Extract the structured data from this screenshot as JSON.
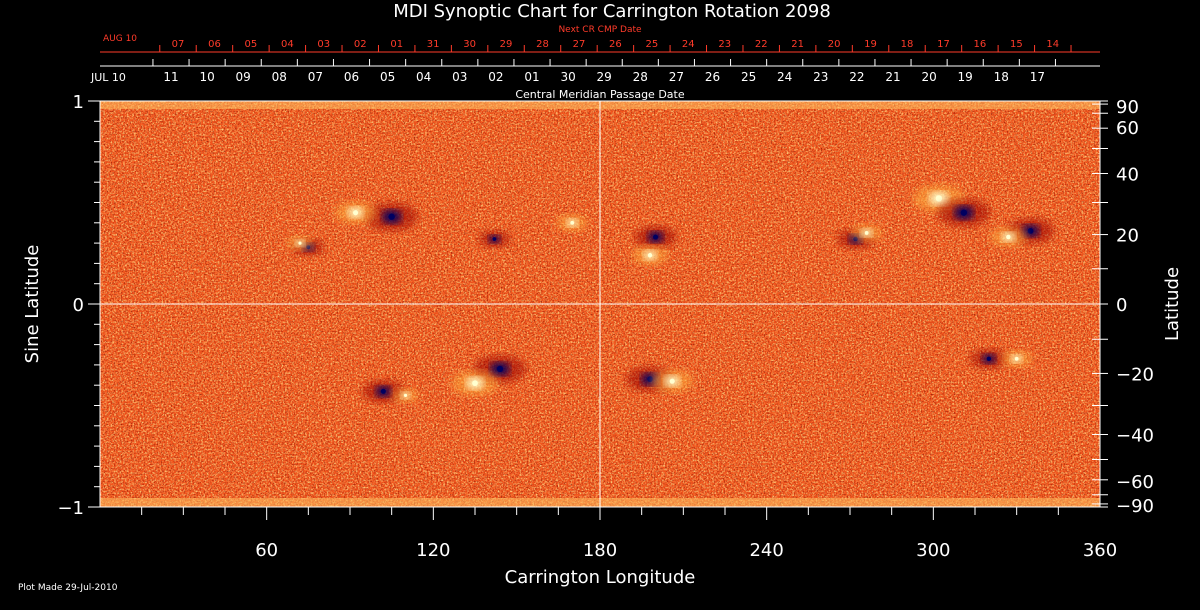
{
  "chart_data": {
    "type": "heatmap",
    "title": "MDI Synoptic Chart for Carrington Rotation 2098",
    "xlabel": "Carrington Longitude",
    "ylabel_left": "Sine Latitude",
    "ylabel_right": "Latitude",
    "xlim": [
      0,
      360
    ],
    "ylim": [
      -1,
      1
    ],
    "x_ticks": [
      60,
      120,
      180,
      240,
      300,
      360
    ],
    "y_ticks_left": [
      {
        "value": 1,
        "label": "1"
      },
      {
        "value": 0,
        "label": "0"
      },
      {
        "value": -1,
        "label": "−1"
      }
    ],
    "y_ticks_right": [
      {
        "value": 90,
        "label": "90"
      },
      {
        "value": 60,
        "label": "60"
      },
      {
        "value": 40,
        "label": "40"
      },
      {
        "value": 20,
        "label": "20"
      },
      {
        "value": 0,
        "label": "0"
      },
      {
        "value": -20,
        "label": "−20"
      },
      {
        "value": -40,
        "label": "−40"
      },
      {
        "value": -60,
        "label": "−60"
      },
      {
        "value": -90,
        "label": "−90"
      }
    ],
    "top_axis_cmp": {
      "label": "Central Meridian Passage Date",
      "start_label": "JUL 10",
      "dates": [
        "11",
        "10",
        "09",
        "08",
        "07",
        "06",
        "05",
        "04",
        "03",
        "02",
        "01",
        "30",
        "29",
        "28",
        "27",
        "26",
        "25",
        "24",
        "23",
        "22",
        "21",
        "20",
        "19",
        "18",
        "17"
      ]
    },
    "top_axis_next": {
      "label": "Next CR CMP Date",
      "start_label": "AUG 10",
      "dates": [
        "07",
        "06",
        "05",
        "04",
        "03",
        "02",
        "01",
        "31",
        "30",
        "29",
        "28",
        "27",
        "26",
        "25",
        "24",
        "23",
        "22",
        "21",
        "20",
        "19",
        "18",
        "17",
        "16",
        "15",
        "14"
      ]
    },
    "active_regions": [
      {
        "lon": 105,
        "sinlat": 0.43,
        "polarity": "negative",
        "strength": 1.0
      },
      {
        "lon": 92,
        "sinlat": 0.45,
        "polarity": "positive",
        "strength": 0.8
      },
      {
        "lon": 75,
        "sinlat": 0.28,
        "polarity": "negative",
        "strength": 0.6
      },
      {
        "lon": 72,
        "sinlat": 0.3,
        "polarity": "positive",
        "strength": 0.5
      },
      {
        "lon": 142,
        "sinlat": 0.32,
        "polarity": "negative",
        "strength": 0.6
      },
      {
        "lon": 170,
        "sinlat": 0.4,
        "polarity": "positive",
        "strength": 0.6
      },
      {
        "lon": 200,
        "sinlat": 0.33,
        "polarity": "negative",
        "strength": 0.8
      },
      {
        "lon": 198,
        "sinlat": 0.24,
        "polarity": "positive",
        "strength": 0.7
      },
      {
        "lon": 272,
        "sinlat": 0.32,
        "polarity": "negative",
        "strength": 0.7
      },
      {
        "lon": 276,
        "sinlat": 0.35,
        "polarity": "positive",
        "strength": 0.6
      },
      {
        "lon": 302,
        "sinlat": 0.52,
        "polarity": "positive",
        "strength": 1.0
      },
      {
        "lon": 311,
        "sinlat": 0.45,
        "polarity": "negative",
        "strength": 1.0
      },
      {
        "lon": 335,
        "sinlat": 0.36,
        "polarity": "negative",
        "strength": 0.9
      },
      {
        "lon": 327,
        "sinlat": 0.33,
        "polarity": "positive",
        "strength": 0.7
      },
      {
        "lon": 144,
        "sinlat": -0.32,
        "polarity": "negative",
        "strength": 1.0
      },
      {
        "lon": 135,
        "sinlat": -0.39,
        "polarity": "positive",
        "strength": 0.9
      },
      {
        "lon": 102,
        "sinlat": -0.43,
        "polarity": "negative",
        "strength": 0.8
      },
      {
        "lon": 110,
        "sinlat": -0.45,
        "polarity": "positive",
        "strength": 0.5
      },
      {
        "lon": 198,
        "sinlat": -0.37,
        "polarity": "negative",
        "strength": 0.9
      },
      {
        "lon": 206,
        "sinlat": -0.38,
        "polarity": "positive",
        "strength": 0.8
      },
      {
        "lon": 320,
        "sinlat": -0.27,
        "polarity": "negative",
        "strength": 0.7
      },
      {
        "lon": 330,
        "sinlat": -0.27,
        "polarity": "positive",
        "strength": 0.6
      }
    ],
    "grid_lines": {
      "longitude": 180,
      "sinlat": 0
    },
    "colormap": [
      "#000060",
      "#9a0000",
      "#ff5a1a",
      "#ffb040",
      "#ffffd0"
    ],
    "footer": "Plot Made 29-Jul-2010"
  }
}
